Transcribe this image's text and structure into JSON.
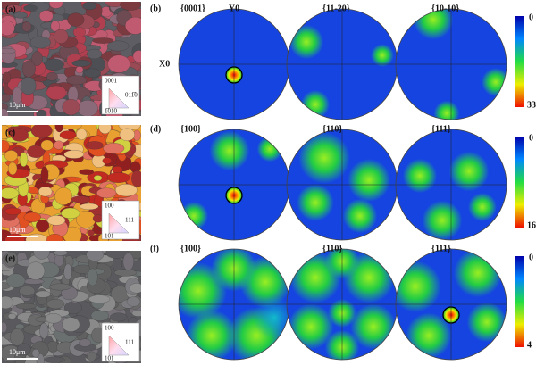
{
  "micrographs": [
    {
      "label": "(a)",
      "scale_bar": "10μm",
      "ipf": [
        "0001",
        "011̅0",
        "1̅010"
      ]
    },
    {
      "label": "(c)",
      "scale_bar": "10μm",
      "ipf": [
        "100",
        "111",
        "101"
      ]
    },
    {
      "label": "(e)",
      "scale_bar": "10μm",
      "ipf": [
        "100",
        "111",
        "101"
      ]
    }
  ],
  "pole_figures": [
    {
      "label": "(b)",
      "titles": [
        "{0001}",
        "{11-20}",
        "{10-10}"
      ],
      "axis_labels": [
        "Y0",
        "X0"
      ],
      "colorbar": [
        0,
        33
      ]
    },
    {
      "label": "(d)",
      "titles": [
        "{100}",
        "{110}",
        "{111}"
      ],
      "colorbar": [
        0,
        16
      ]
    },
    {
      "label": "(f)",
      "titles": [
        "{100}",
        "{110}",
        "{111}"
      ],
      "colorbar": [
        0,
        4
      ]
    }
  ]
}
